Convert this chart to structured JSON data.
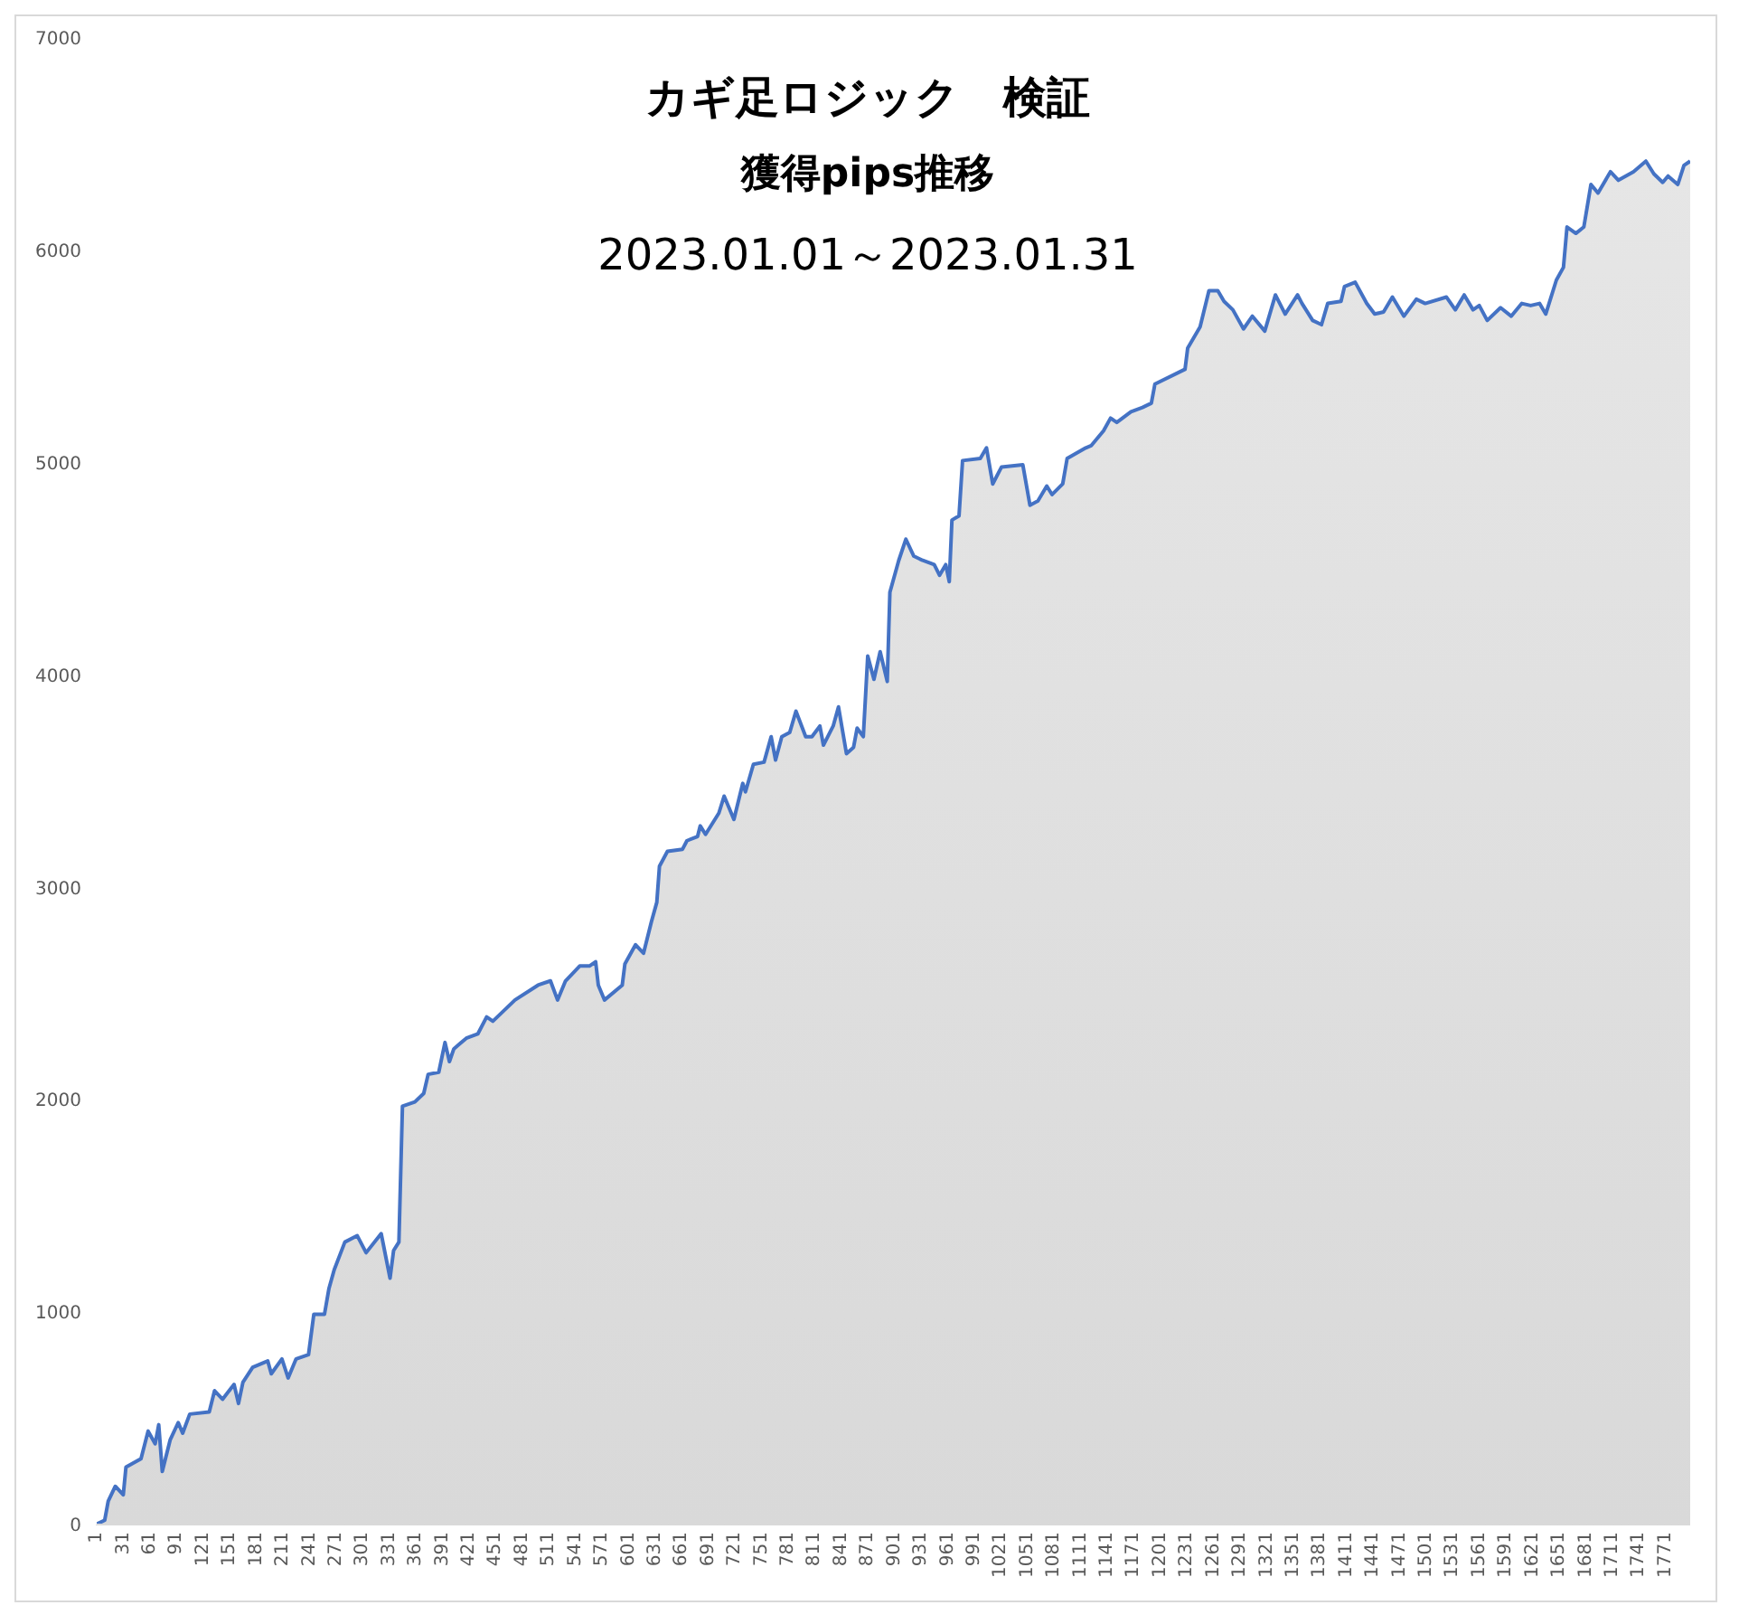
{
  "chart_data": {
    "type": "area",
    "title": "カギ足ロジック　検証",
    "subtitle": "獲得pips推移\n2023.01.01～2023.01.31",
    "xlim": [
      1,
      1800
    ],
    "xticks": [
      1,
      31,
      61,
      91,
      121,
      151,
      181,
      211,
      241,
      271,
      301,
      331,
      361,
      391,
      421,
      451,
      481,
      511,
      541,
      571,
      601,
      631,
      661,
      691,
      721,
      751,
      781,
      811,
      841,
      871,
      901,
      931,
      961,
      991,
      1021,
      1051,
      1081,
      1111,
      1141,
      1171,
      1201,
      1231,
      1261,
      1291,
      1321,
      1351,
      1381,
      1411,
      1441,
      1471,
      1501,
      1531,
      1561,
      1591,
      1621,
      1651,
      1681,
      1711,
      1741,
      1771
    ],
    "ylim": [
      0,
      7000
    ],
    "yticks": [
      0,
      1000,
      2000,
      3000,
      4000,
      5000,
      6000,
      7000
    ],
    "grid": false,
    "x": [
      1,
      11,
      15,
      23,
      32,
      35,
      52,
      60,
      68,
      72,
      76,
      85,
      94,
      99,
      107,
      129,
      135,
      144,
      157,
      162,
      167,
      178,
      195,
      199,
      211,
      218,
      227,
      241,
      247,
      259,
      264,
      270,
      282,
      296,
      306,
      323,
      333,
      337,
      343,
      347,
      361,
      371,
      376,
      388,
      395,
      400,
      405,
      419,
      432,
      442,
      449,
      474,
      500,
      514,
      522,
      531,
      547,
      558,
      565,
      568,
      575,
      595,
      598,
      610,
      619,
      628,
      634,
      637,
      646,
      663,
      668,
      680,
      683,
      689,
      704,
      710,
      721,
      731,
      734,
      743,
      755,
      763,
      768,
      775,
      784,
      791,
      802,
      809,
      818,
      822,
      833,
      839,
      848,
      856,
      860,
      867,
      872,
      879,
      886,
      894,
      897,
      907,
      915,
      924,
      934,
      947,
      953,
      960,
      964,
      967,
      975,
      979,
      999,
      1006,
      1013,
      1023,
      1047,
      1055,
      1064,
      1074,
      1080,
      1092,
      1097,
      1118,
      1124,
      1138,
      1146,
      1153,
      1169,
      1182,
      1192,
      1196,
      1230,
      1233,
      1247,
      1257,
      1267,
      1274,
      1284,
      1296,
      1306,
      1320,
      1332,
      1343,
      1357,
      1362,
      1374,
      1384,
      1391,
      1406,
      1410,
      1422,
      1435,
      1444,
      1454,
      1464,
      1477,
      1491,
      1501,
      1525,
      1535,
      1545,
      1555,
      1562,
      1571,
      1586,
      1598,
      1610,
      1620,
      1630,
      1637,
      1649,
      1657,
      1661,
      1671,
      1680,
      1688,
      1696,
      1710,
      1719,
      1736,
      1750,
      1759,
      1769,
      1775,
      1786,
      1793,
      1800
    ],
    "series": [
      {
        "color": "#4472c4",
        "values": [
          0,
          20,
          110,
          180,
          140,
          270,
          310,
          440,
          380,
          470,
          250,
          400,
          480,
          430,
          520,
          530,
          630,
          590,
          660,
          570,
          670,
          740,
          770,
          710,
          780,
          690,
          780,
          800,
          990,
          990,
          1110,
          1200,
          1330,
          1360,
          1280,
          1370,
          1160,
          1290,
          1330,
          1970,
          1990,
          2030,
          2120,
          2130,
          2270,
          2180,
          2240,
          2290,
          2310,
          2390,
          2370,
          2470,
          2540,
          2560,
          2470,
          2560,
          2630,
          2630,
          2650,
          2540,
          2470,
          2540,
          2640,
          2730,
          2690,
          2840,
          2930,
          3100,
          3170,
          3180,
          3220,
          3240,
          3290,
          3250,
          3350,
          3430,
          3320,
          3490,
          3450,
          3580,
          3590,
          3710,
          3600,
          3710,
          3730,
          3830,
          3710,
          3710,
          3760,
          3670,
          3760,
          3850,
          3630,
          3660,
          3750,
          3710,
          4090,
          3980,
          4110,
          3970,
          4390,
          4540,
          4640,
          4560,
          4540,
          4520,
          4470,
          4520,
          4440,
          4730,
          4750,
          5010,
          5020,
          5070,
          4900,
          4980,
          4990,
          4800,
          4820,
          4890,
          4850,
          4900,
          5020,
          5070,
          5080,
          5150,
          5210,
          5190,
          5240,
          5260,
          5280,
          5370,
          5440,
          5540,
          5640,
          5810,
          5810,
          5760,
          5720,
          5630,
          5690,
          5620,
          5790,
          5700,
          5790,
          5750,
          5670,
          5650,
          5750,
          5760,
          5830,
          5850,
          5750,
          5700,
          5710,
          5780,
          5690,
          5770,
          5750,
          5780,
          5720,
          5790,
          5720,
          5740,
          5670,
          5730,
          5690,
          5750,
          5740,
          5750,
          5700,
          5860,
          5920,
          6110,
          6080,
          6110,
          6310,
          6270,
          6370,
          6330,
          6370,
          6420,
          6360,
          6320,
          6350,
          6310,
          6400,
          6420
        ]
      }
    ]
  }
}
